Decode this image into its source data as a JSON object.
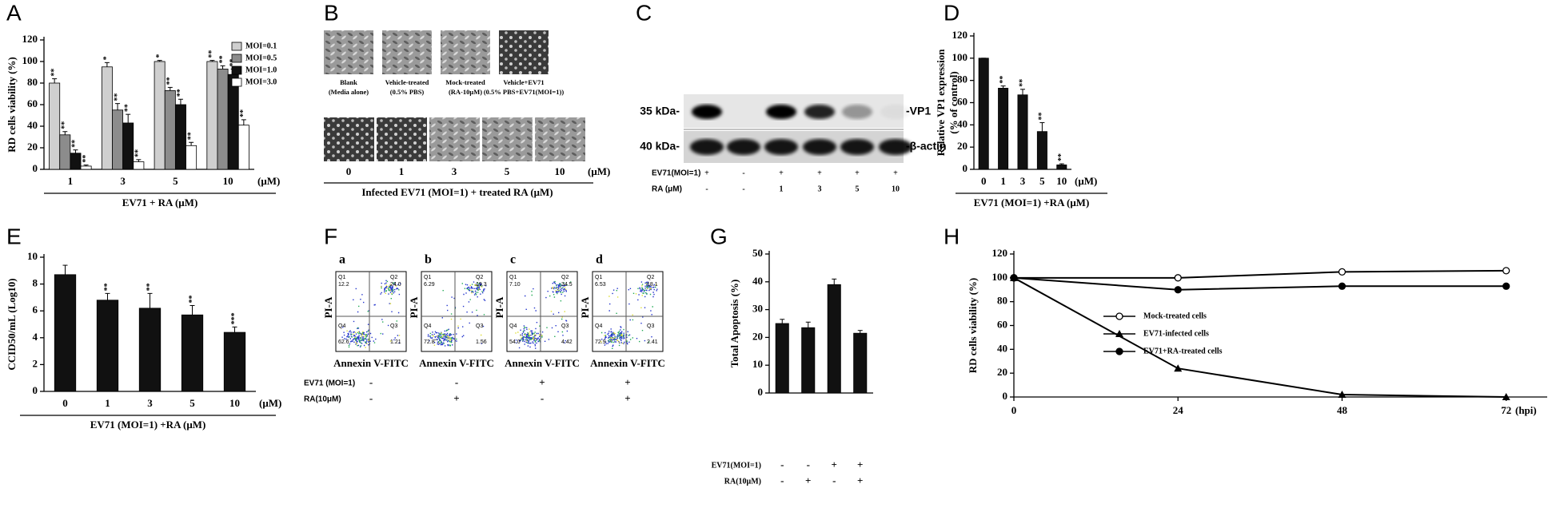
{
  "chart_data": [
    {
      "panel": "A",
      "type": "bar",
      "y_label": [
        "RD cells viability (%)"
      ],
      "categories": [
        "1",
        "3",
        "5",
        "10"
      ],
      "x_unit": "(μM)",
      "x_label": "EV71 + RA (μM)",
      "ylim": [
        0,
        120
      ],
      "yticks": [
        0,
        20,
        40,
        60,
        80,
        100,
        120
      ],
      "legend": "upper right",
      "series": [
        {
          "name": "MOI=0.1",
          "color": "#cfcfcf",
          "values": [
            80,
            95,
            100,
            100
          ],
          "errors": [
            4,
            4,
            1,
            1
          ],
          "significance": [
            "**",
            "*",
            "*",
            "**"
          ]
        },
        {
          "name": "MOI=0.5",
          "color": "#8c8c8c",
          "values": [
            32,
            55,
            73,
            93
          ],
          "errors": [
            3,
            6,
            3,
            3
          ],
          "significance": [
            "**",
            "**",
            "**",
            "**"
          ]
        },
        {
          "name": "MOI=1.0",
          "color": "#111111",
          "values": [
            15,
            43,
            60,
            88
          ],
          "errors": [
            3,
            8,
            5,
            5
          ],
          "significance": [
            "**",
            "**",
            "**",
            "**"
          ]
        },
        {
          "name": "MOI=3.0",
          "color": "#ffffff",
          "values": [
            3,
            7,
            22,
            41
          ],
          "errors": [
            1,
            2,
            3,
            5
          ],
          "significance": [
            "**",
            "**",
            "**",
            "**"
          ]
        }
      ]
    },
    {
      "panel": "D",
      "type": "bar",
      "y_label": [
        "Relative VP1 expression",
        "(% of control)"
      ],
      "categories": [
        "0",
        "1",
        "3",
        "5",
        "10"
      ],
      "values": [
        100,
        73,
        67,
        34,
        4
      ],
      "errors": [
        0,
        2,
        5,
        8,
        1
      ],
      "significance": [
        null,
        "**",
        "**",
        "**",
        "**"
      ],
      "color": "#111111",
      "x_unit": "(μM)",
      "x_label": "EV71 (MOI=1) +RA (μM)",
      "ylim": [
        0,
        120
      ],
      "yticks": [
        0,
        20,
        40,
        60,
        80,
        100,
        120
      ]
    },
    {
      "panel": "E",
      "type": "bar",
      "y_label": [
        "CCID50/mL (Log10)"
      ],
      "categories": [
        "0",
        "1",
        "3",
        "5",
        "10"
      ],
      "values": [
        8.7,
        6.8,
        6.2,
        5.7,
        4.4
      ],
      "errors": [
        0.7,
        0.5,
        1.1,
        0.7,
        0.4
      ],
      "significance": [
        null,
        "**",
        "**",
        "**",
        "***"
      ],
      "color": "#111111",
      "x_unit": "(μM)",
      "x_label": "EV71 (MOI=1) +RA (μM)",
      "ylim": [
        0,
        10
      ],
      "yticks": [
        0,
        2,
        4,
        6,
        8,
        10
      ]
    },
    {
      "panel": "G",
      "type": "bar",
      "y_label": [
        "Total Apoptosis (%)"
      ],
      "categories": [
        null,
        null,
        null,
        null
      ],
      "values": [
        25,
        23.5,
        39,
        21.5
      ],
      "errors": [
        1.5,
        2,
        2,
        1
      ],
      "color": "#111111",
      "ylim": [
        0,
        50
      ],
      "yticks": [
        0,
        10,
        20,
        30,
        40,
        50
      ],
      "conditions": [
        {
          "name": "EV71(MOI=1)",
          "values": [
            "-",
            "-",
            "+",
            "+"
          ]
        },
        {
          "name": "RA(10μM)",
          "values": [
            "-",
            "+",
            "-",
            "+"
          ]
        }
      ]
    },
    {
      "panel": "H",
      "type": "line",
      "y_label": [
        "RD cells viability (%)"
      ],
      "x": [
        0,
        24,
        48,
        72
      ],
      "xlim": [
        0,
        78
      ],
      "xticks": [
        0,
        24,
        48,
        72
      ],
      "x_unit": "(hpi)",
      "ylim": [
        0,
        120
      ],
      "yticks": [
        0,
        20,
        40,
        60,
        80,
        100,
        120
      ],
      "legend": "center",
      "series": [
        {
          "name": "Mock-treated cells",
          "color": "#000000",
          "marker": "open-circle",
          "values": [
            100,
            100,
            105,
            106
          ]
        },
        {
          "name": "EV71-infected cells",
          "color": "#000000",
          "marker": "triangle",
          "values": [
            100,
            24,
            2,
            0
          ]
        },
        {
          "name": "EV71+RA-treated cells",
          "color": "#000000",
          "marker": "circle",
          "values": [
            100,
            90,
            93,
            93
          ]
        }
      ]
    }
  ],
  "panel_b": {
    "panel": "B",
    "top_images": [
      {
        "line1": "Blank",
        "line2": "(Media alone)"
      },
      {
        "line1": "Vehicle-treated",
        "line2": "(0.5% PBS)"
      },
      {
        "line1": "Mock-treated",
        "line2": "(RA-10μM)"
      },
      {
        "line1": "Vehicle+EV71",
        "line2": "(0.5% PBS+EV71(MOI=1))"
      }
    ],
    "bottom_ticks": [
      "0",
      "1",
      "3",
      "5",
      "10"
    ],
    "unit": "(μM)",
    "x_label": "Infected EV71 (MOI=1) + treated RA (μM)"
  },
  "panel_c": {
    "panel": "C",
    "markers": [
      "35 kDa-",
      "40 kDa-"
    ],
    "bands": [
      "-VP1",
      "-β-actin"
    ],
    "rows": [
      {
        "name": "EV71(MOI=1)",
        "values": [
          "+",
          "-",
          "+",
          "+",
          "+",
          "+"
        ]
      },
      {
        "name": "RA (μM)",
        "values": [
          "-",
          "-",
          "1",
          "3",
          "5",
          "10"
        ]
      }
    ]
  },
  "panel_f": {
    "panel": "F",
    "y_label": "PI-A",
    "x_label": "Annexin V-FITC",
    "quadrant_names": [
      "Q1",
      "Q2",
      "Q4",
      "Q3"
    ],
    "plots": [
      {
        "id": "a",
        "values": [
          "12.2",
          "24.0",
          "62.6",
          "1.21"
        ]
      },
      {
        "id": "b",
        "values": [
          "6.29",
          "19.3",
          "72.8",
          "1.56"
        ]
      },
      {
        "id": "c",
        "values": [
          "7.10",
          "34.5",
          "54.0",
          "4.42"
        ]
      },
      {
        "id": "d",
        "values": [
          "6.53",
          "18.1",
          "72.9",
          "2.41"
        ]
      }
    ],
    "rows": [
      {
        "name": "EV71 (MOI=1)",
        "values": [
          "-",
          "-",
          "+",
          "+"
        ]
      },
      {
        "name": "RA(10μM)",
        "values": [
          "-",
          "+",
          "-",
          "+"
        ]
      }
    ]
  }
}
